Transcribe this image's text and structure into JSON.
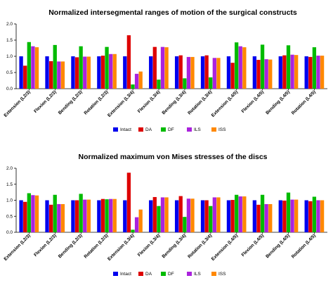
{
  "chart_data": [
    {
      "type": "bar",
      "title": "Normalized intersegmental ranges of motion of the surgical constructs",
      "ylim": [
        0,
        2.0
      ],
      "yticks": [
        "0.0",
        "0.5",
        "1.0",
        "1.5",
        "2.0"
      ],
      "categories": [
        "Extension (L2/3)",
        "Flexion (L2/3)",
        "Bending (L2/3)",
        "Rotation (L2/3)",
        "Extension (L3/4)",
        "Flexion (L3/4)",
        "Bending (L3/4)",
        "Rotation (L3/4)",
        "Extension (L4/5)",
        "Flexion (L4/5)",
        "Bending (L4/5)",
        "Rotation (L4/5)"
      ],
      "series": [
        {
          "name": "Intact",
          "color": "#0000ee",
          "values": [
            1.0,
            1.0,
            1.0,
            1.0,
            1.0,
            1.0,
            1.0,
            1.0,
            1.0,
            1.0,
            1.0,
            1.0
          ]
        },
        {
          "name": "DA",
          "color": "#dd0000",
          "values": [
            0.71,
            0.85,
            0.97,
            1.02,
            1.65,
            1.29,
            1.03,
            1.03,
            0.8,
            0.89,
            1.03,
            0.98
          ]
        },
        {
          "name": "DF",
          "color": "#00bb00",
          "values": [
            1.44,
            1.35,
            1.31,
            1.29,
            0.13,
            0.28,
            0.32,
            0.35,
            1.43,
            1.36,
            1.34,
            1.28
          ]
        },
        {
          "name": "ILS",
          "color": "#aa22dd",
          "values": [
            1.31,
            0.84,
            0.99,
            1.07,
            0.46,
            1.29,
            0.98,
            0.95,
            1.31,
            0.91,
            1.05,
            1.02
          ]
        },
        {
          "name": "ISS",
          "color": "#ff8800",
          "values": [
            1.28,
            0.84,
            0.99,
            1.07,
            0.53,
            1.28,
            0.98,
            0.95,
            1.28,
            0.9,
            1.04,
            1.02
          ]
        }
      ],
      "legend": "bottom"
    },
    {
      "type": "bar",
      "title": "Normalized maximum von Mises stresses of the discs",
      "ylim": [
        0,
        2.0
      ],
      "yticks": [
        "0.0",
        "0.5",
        "1.0",
        "1.5",
        "2.0"
      ],
      "categories": [
        "Extension (L2/3)",
        "Flexion (L2/3)",
        "Bending (L2/3)",
        "Rotation (L2/3)",
        "Extension (L3/4)",
        "Flexion (L3/4)",
        "Bending (L3/4)",
        "Rotation (L3/4)",
        "Extension (L4/5)",
        "Flexion (L4/5)",
        "Bending (L4/5)",
        "Rotation (L4/5)"
      ],
      "series": [
        {
          "name": "Intact",
          "color": "#0000ee",
          "values": [
            1.0,
            1.0,
            1.0,
            1.0,
            1.0,
            1.0,
            1.0,
            1.0,
            1.0,
            1.0,
            1.0,
            1.0
          ]
        },
        {
          "name": "DA",
          "color": "#dd0000",
          "values": [
            0.95,
            0.86,
            1.0,
            1.04,
            1.86,
            1.1,
            1.13,
            1.0,
            1.01,
            0.86,
            0.99,
            0.97
          ]
        },
        {
          "name": "DF",
          "color": "#00bb00",
          "values": [
            1.22,
            1.17,
            1.2,
            1.03,
            0.08,
            0.82,
            0.48,
            0.82,
            1.17,
            1.17,
            1.24,
            1.11
          ]
        },
        {
          "name": "ILS",
          "color": "#aa22dd",
          "values": [
            1.16,
            0.88,
            1.02,
            1.04,
            0.47,
            1.09,
            1.05,
            1.09,
            1.12,
            0.88,
            1.02,
            1.0
          ]
        },
        {
          "name": "ISS",
          "color": "#ff8800",
          "values": [
            1.15,
            0.88,
            1.02,
            1.04,
            0.71,
            1.09,
            1.05,
            1.09,
            1.12,
            0.88,
            1.02,
            1.0
          ]
        }
      ],
      "legend": "bottom"
    }
  ]
}
